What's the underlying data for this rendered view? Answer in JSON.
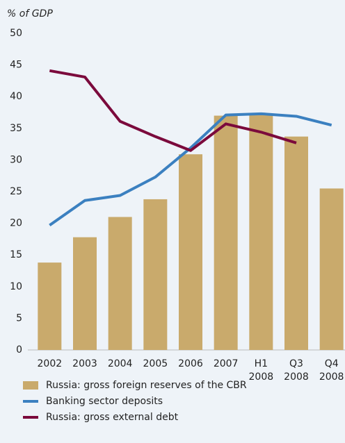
{
  "chart_data": {
    "type": "bar",
    "y_label": "% of GDP",
    "categories": [
      "2002",
      "2003",
      "2004",
      "2005",
      "2006",
      "2007",
      "H1 2008",
      "Q3 2008",
      "Q4 2008"
    ],
    "series": [
      {
        "name": "Russia: gross foreign reserves of the CBR",
        "type": "bar",
        "color": "#c9aa6c",
        "values": [
          13.8,
          17.8,
          21,
          23.8,
          30.9,
          37,
          37.2,
          33.7,
          25.5
        ]
      },
      {
        "name": "Banking sector deposits",
        "type": "line",
        "color": "#3b80c0",
        "values": [
          19.7,
          23.6,
          24.4,
          27.3,
          31.9,
          37.1,
          37.3,
          36.9,
          35.5
        ]
      },
      {
        "name": "Russia: gross external debt",
        "type": "line",
        "color": "#7b0a3c",
        "values": [
          44.1,
          43.1,
          36.1,
          33.7,
          31.5,
          35.7,
          34.4,
          32.7,
          null
        ]
      }
    ],
    "ylim": [
      0,
      50
    ],
    "yticks": [
      0,
      5,
      10,
      15,
      20,
      25,
      30,
      35,
      40,
      45,
      50
    ]
  }
}
